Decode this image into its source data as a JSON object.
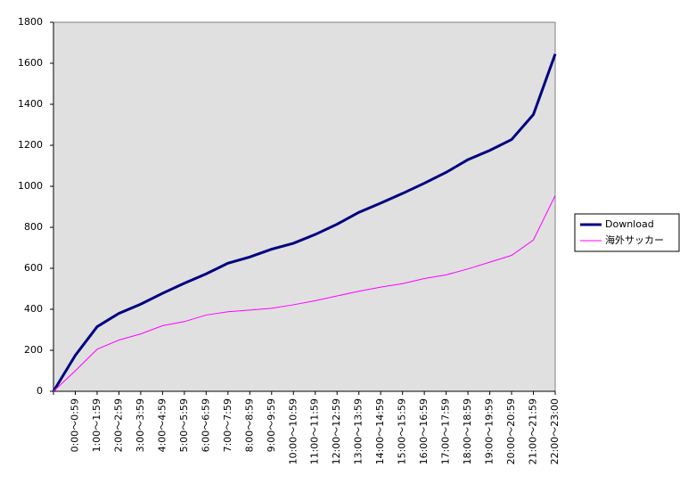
{
  "chart_data": {
    "type": "line",
    "categories": [
      null,
      "0:00～0:59",
      "1:00～1:59",
      "2:00～2:59",
      "3:00～3:59",
      "4:00～4:59",
      "5:00～5:59",
      "6:00～6:59",
      "7:00～7:59",
      "8:00～8:59",
      "9:00～9:59",
      "10:00～10:59",
      "11:00～11:59",
      "12:00～12:59",
      "13:00～13:59",
      "14:00～14:59",
      "15:00～15:59",
      "16:00～16:59",
      "17:00～17:59",
      "18:00～18:59",
      "19:00～19:59",
      "20:00～20:59",
      "21:00～21:59",
      "22:00～23:00"
    ],
    "series": [
      {
        "name": "Download",
        "color": "#000080",
        "values": [
          0,
          175,
          315,
          380,
          425,
          478,
          527,
          573,
          625,
          655,
          693,
          722,
          765,
          815,
          873,
          918,
          965,
          1015,
          1068,
          1130,
          1175,
          1228,
          1350,
          1645
        ]
      },
      {
        "name": "海外サッカー",
        "color": "#ff00ff",
        "values": [
          0,
          100,
          205,
          250,
          280,
          320,
          340,
          372,
          388,
          396,
          405,
          422,
          442,
          465,
          488,
          508,
          525,
          550,
          568,
          597,
          630,
          663,
          738,
          955
        ]
      }
    ],
    "ylim": [
      0,
      1800
    ],
    "yticks": [
      0,
      200,
      400,
      600,
      800,
      1000,
      1200,
      1400,
      1600,
      1800
    ],
    "grid": false,
    "legend": "right"
  }
}
